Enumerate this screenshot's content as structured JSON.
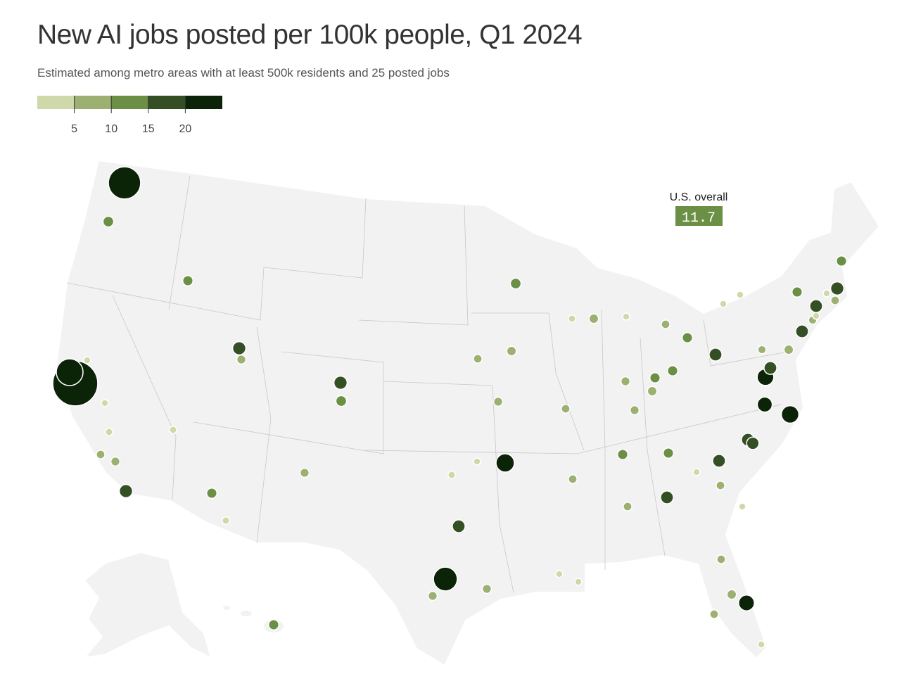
{
  "chart_data": {
    "type": "bubble-map",
    "title": "New AI jobs posted per 100k people, Q1 2024",
    "subtitle": "Estimated among metro areas with at least 500k residents and 25 posted jobs",
    "scale_lim": [
      0,
      25
    ],
    "scale_ticks": [
      5,
      10,
      15,
      20
    ],
    "scale_colors": [
      "#cfd8a8",
      "#9cb072",
      "#6b8f45",
      "#354f24",
      "#0b2306"
    ],
    "overall": {
      "label": "U.S. overall",
      "value": 11.7
    },
    "values": [
      63,
      12,
      11,
      18,
      8,
      3,
      93,
      50,
      3,
      4,
      7,
      8,
      18,
      4,
      11,
      4,
      8,
      18,
      12,
      17,
      43,
      8,
      8,
      4,
      3,
      30,
      7,
      9,
      8,
      12,
      7,
      7,
      9,
      4,
      3,
      7,
      11,
      8,
      11,
      11,
      9,
      8,
      17,
      11,
      11,
      7,
      17,
      3,
      7,
      17,
      17,
      16,
      3,
      22,
      28,
      26,
      17,
      9,
      6,
      17,
      6,
      3,
      3,
      18,
      7,
      11,
      3,
      3,
      11,
      17,
      3,
      3,
      7,
      9,
      7,
      24,
      3,
      11
    ]
  }
}
